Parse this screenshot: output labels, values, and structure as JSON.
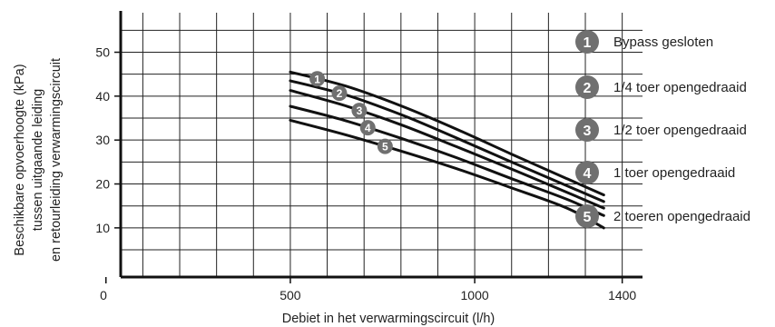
{
  "chart_data": {
    "type": "line",
    "xlabel": "Debiet in het verwarmingscircuit (l/h)",
    "ylabel_lines": [
      "Beschikbare opvoerhoogte (kPa)",
      "tussen uitgaande leiding",
      "en retourleiding verwarmingscircuit"
    ],
    "x_tick_labels": [
      "0",
      "500",
      "1000",
      "1400"
    ],
    "x_ticks": [
      0,
      500,
      1000,
      1400
    ],
    "y_tick_labels": [
      "10",
      "20",
      "30",
      "40",
      "50"
    ],
    "y_ticks": [
      10,
      20,
      30,
      40,
      50
    ],
    "xlim": [
      40,
      1455
    ],
    "ylim": [
      -1.2,
      59
    ],
    "grid": true,
    "legend_position": "right",
    "series": [
      {
        "name": "Bypass gesloten",
        "marker": "1",
        "x": [
          500,
          650,
          800,
          950,
          1100,
          1250,
          1350
        ],
        "y": [
          45.5,
          42.3,
          37.8,
          32.5,
          26.8,
          21.2,
          17.5
        ]
      },
      {
        "name": "1/4 toer opengedraaid",
        "marker": "2",
        "x": [
          500,
          650,
          800,
          950,
          1100,
          1250,
          1350
        ],
        "y": [
          43.5,
          40.3,
          35.8,
          30.5,
          25.0,
          19.6,
          16.0
        ]
      },
      {
        "name": "1/2 toer opengedraaid",
        "marker": "3",
        "x": [
          500,
          650,
          800,
          950,
          1100,
          1250,
          1350
        ],
        "y": [
          41.3,
          37.8,
          33.5,
          28.5,
          23.4,
          18.1,
          14.5
        ]
      },
      {
        "name": "1 toer opengedraaid",
        "marker": "4",
        "x": [
          500,
          650,
          800,
          950,
          1100,
          1250,
          1350
        ],
        "y": [
          37.7,
          34.4,
          30.4,
          26.0,
          21.2,
          16.5,
          12.8
        ]
      },
      {
        "name": "2 toeren opengedraaid",
        "marker": "5",
        "x": [
          500,
          650,
          800,
          950,
          1100,
          1250,
          1350
        ],
        "y": [
          34.5,
          31.2,
          27.5,
          23.5,
          19.1,
          14.5,
          10.0
        ]
      }
    ],
    "marker_x": [
      573,
      633,
      687,
      710,
      757
    ],
    "badge_color": "#707070",
    "line_color": "#111111",
    "grid_color": "#222222"
  }
}
